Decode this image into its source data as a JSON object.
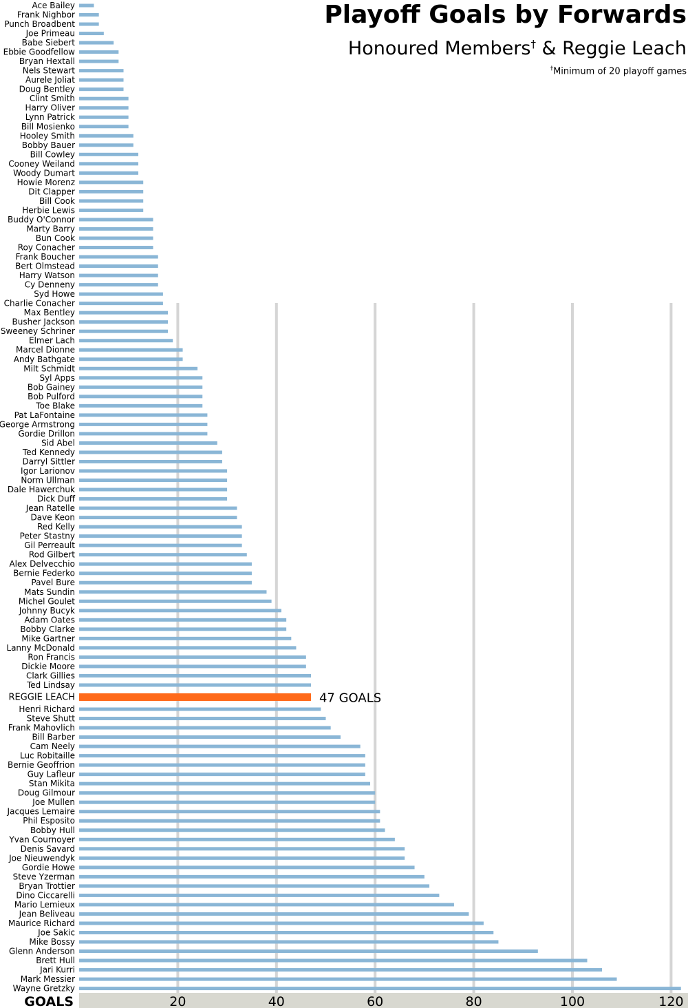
{
  "header": {
    "title": "Playoff Goals by Forwards",
    "subtitle_main": "Honoured Members",
    "subtitle_mark": "†",
    "subtitle_rest": " & Reggie Leach",
    "footnote_mark": "†",
    "footnote_text": "Minimum of 20 playoff games"
  },
  "colors": {
    "bar": "#8ab6d6",
    "highlight": "#ff6a1a",
    "gridline": "#d5d5d5",
    "axis_band": "#d8d8d0"
  },
  "chart_data": {
    "type": "bar",
    "orientation": "horizontal",
    "title": "Playoff Goals by Forwards",
    "subtitle": "Honoured Members† & Reggie Leach",
    "xlabel": "GOALS",
    "xlim": [
      0,
      122
    ],
    "xticks": [
      20,
      40,
      60,
      80,
      100,
      120
    ],
    "grid": true,
    "highlight": {
      "name": "REGGIE LEACH",
      "value": 47,
      "label": "47 GOALS"
    },
    "categories": [
      "Ace Bailey",
      "Frank Nighbor",
      "Punch Broadbent",
      "Joe Primeau",
      "Babe Siebert",
      "Ebbie Goodfellow",
      "Bryan Hextall",
      "Nels Stewart",
      "Aurele Joliat",
      "Doug Bentley",
      "Clint Smith",
      "Harry Oliver",
      "Lynn Patrick",
      "Bill Mosienko",
      "Hooley Smith",
      "Bobby Bauer",
      "Bill Cowley",
      "Cooney Weiland",
      "Woody Dumart",
      "Howie Morenz",
      "Dit Clapper",
      "Bill Cook",
      "Herbie Lewis",
      "Buddy O'Connor",
      "Marty Barry",
      "Bun Cook",
      "Roy Conacher",
      "Frank Boucher",
      "Bert Olmstead",
      "Harry Watson",
      "Cy Denneny",
      "Syd Howe",
      "Charlie Conacher",
      "Max Bentley",
      "Busher Jackson",
      "Sweeney Schriner",
      "Elmer Lach",
      "Marcel Dionne",
      "Andy Bathgate",
      "Milt Schmidt",
      "Syl Apps",
      "Bob Gainey",
      "Bob Pulford",
      "Toe Blake",
      "Pat LaFontaine",
      "George Armstrong",
      "Gordie Drillon",
      "Sid Abel",
      "Ted Kennedy",
      "Darryl Sittler",
      "Igor Larionov",
      "Norm Ullman",
      "Dale Hawerchuk",
      "Dick Duff",
      "Jean Ratelle",
      "Dave Keon",
      "Red Kelly",
      "Peter Stastny",
      "Gil Perreault",
      "Rod Gilbert",
      "Alex Delvecchio",
      "Bernie Federko",
      "Pavel Bure",
      "Mats Sundin",
      "Michel Goulet",
      "Johnny Bucyk",
      "Adam Oates",
      "Bobby Clarke",
      "Mike Gartner",
      "Lanny McDonald",
      "Ron Francis",
      "Dickie Moore",
      "Clark Gillies",
      "Ted Lindsay",
      "REGGIE LEACH",
      "Henri Richard",
      "Steve Shutt",
      "Frank Mahovlich",
      "Bill Barber",
      "Cam Neely",
      "Luc Robitaille",
      "Bernie Geoffrion",
      "Guy Lafleur",
      "Stan Mikita",
      "Doug Gilmour",
      "Joe Mullen",
      "Jacques Lemaire",
      "Phil Esposito",
      "Bobby Hull",
      "Yvan Cournoyer",
      "Denis Savard",
      "Joe Nieuwendyk",
      "Gordie Howe",
      "Steve Yzerman",
      "Bryan Trottier",
      "Dino Ciccarelli",
      "Mario Lemieux",
      "Jean  Beliveau",
      "Maurice Richard",
      "Joe Sakic",
      "Mike Bossy",
      "Glenn Anderson",
      "Brett Hull",
      "Jari Kurri",
      "Mark Messier",
      "Wayne Gretzky"
    ],
    "values": [
      3,
      4,
      4,
      5,
      7,
      8,
      8,
      9,
      9,
      9,
      10,
      10,
      10,
      10,
      11,
      11,
      12,
      12,
      12,
      13,
      13,
      13,
      13,
      15,
      15,
      15,
      15,
      16,
      16,
      16,
      16,
      17,
      17,
      18,
      18,
      18,
      19,
      21,
      21,
      24,
      25,
      25,
      25,
      25,
      26,
      26,
      26,
      28,
      29,
      29,
      30,
      30,
      30,
      30,
      32,
      32,
      33,
      33,
      33,
      34,
      35,
      35,
      35,
      38,
      39,
      41,
      42,
      42,
      43,
      44,
      46,
      46,
      47,
      47,
      47,
      49,
      50,
      51,
      53,
      57,
      58,
      58,
      58,
      59,
      60,
      60,
      61,
      61,
      62,
      64,
      66,
      66,
      68,
      70,
      71,
      73,
      76,
      79,
      82,
      84,
      85,
      93,
      103,
      106,
      109,
      122
    ]
  }
}
